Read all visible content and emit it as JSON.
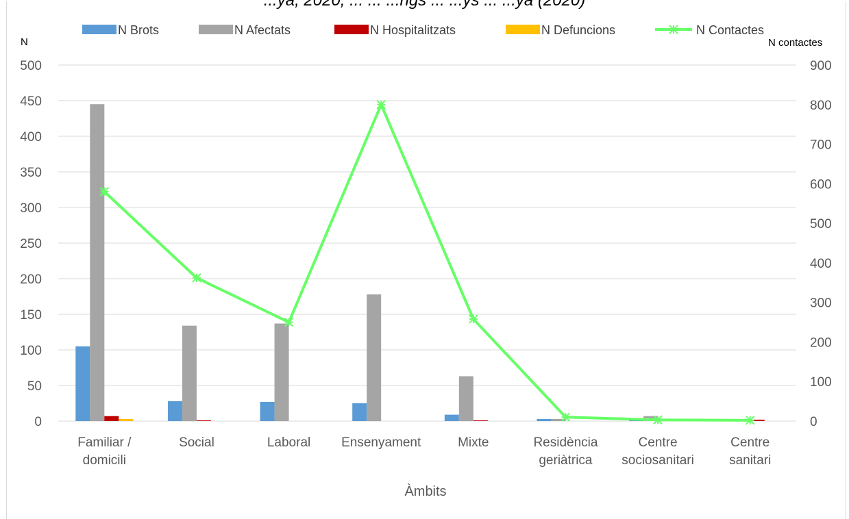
{
  "title_strip": "...ya, 2020, ... ... ...ngs ... ...ys ... ...ya (2020)",
  "chart_data": {
    "type": "bar",
    "title": "",
    "categories": [
      [
        "Familiar /",
        "domicili"
      ],
      [
        "Social"
      ],
      [
        "Laboral"
      ],
      [
        "Ensenyament"
      ],
      [
        "Mixte"
      ],
      [
        "Residència",
        "geriàtrica"
      ],
      [
        "Centre",
        "sociosanitari"
      ],
      [
        "Centre",
        "sanitari"
      ]
    ],
    "xlabel": "Àmbits",
    "ylabel": "N",
    "ylabel_right": "N  contactes",
    "ylim": [
      0,
      500
    ],
    "ylim_right": [
      0,
      900
    ],
    "yticks": [
      0,
      50,
      100,
      150,
      200,
      250,
      300,
      350,
      400,
      450,
      500
    ],
    "yticks_right": [
      0,
      100,
      200,
      300,
      400,
      500,
      600,
      700,
      800,
      900
    ],
    "grid": true,
    "legend_position": "top",
    "series": [
      {
        "name": "N Brots",
        "kind": "bar",
        "axis": "left",
        "color": "#5b9bd5",
        "values": [
          105,
          28,
          27,
          25,
          9,
          3,
          1,
          0
        ]
      },
      {
        "name": "N  Afectats",
        "kind": "bar",
        "axis": "left",
        "color": "#a5a5a5",
        "values": [
          445,
          134,
          137,
          178,
          63,
          3,
          7,
          0
        ]
      },
      {
        "name": "N Hospitalitzats",
        "kind": "bar",
        "axis": "left",
        "color": "#c00000",
        "values": [
          7,
          1,
          0,
          0,
          1,
          0,
          2,
          2
        ]
      },
      {
        "name": "N Defuncions",
        "kind": "bar",
        "axis": "left",
        "color": "#ffc000",
        "values": [
          3,
          0,
          0,
          0,
          0,
          0,
          0,
          0
        ]
      },
      {
        "name": "N Contactes",
        "kind": "line",
        "axis": "right",
        "color": "#66ff66",
        "values": [
          580,
          362,
          250,
          800,
          258,
          10,
          3,
          2
        ]
      }
    ]
  }
}
